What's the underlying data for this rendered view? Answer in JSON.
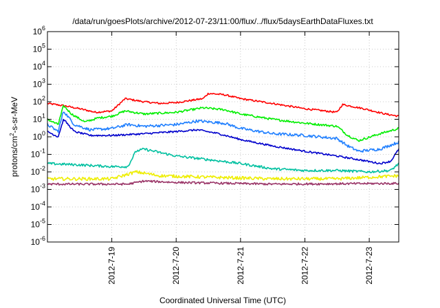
{
  "chart_data": {
    "type": "line",
    "title": "/data/run/goesPlots/archive/2012-07-23/11:00/flux/../flux/5daysEarthDataFluxes.txt",
    "xlabel": "Coordinated Universal Time (UTC)",
    "ylabel": {
      "pre": "protons/cm",
      "sup": "2",
      "post": "-s-sr-MeV"
    },
    "log_y": true,
    "grid": true,
    "xlim": [
      "2012-07-18 00:00",
      "2012-07-23 11:00"
    ],
    "ylim": [
      1e-06,
      1000000.0
    ],
    "x_ticks": [
      {
        "value": "2012-07-19 00:00",
        "label": "2012-7-19"
      },
      {
        "value": "2012-07-20 00:00",
        "label": "2012-7-20"
      },
      {
        "value": "2012-07-21 00:00",
        "label": "2012-7-21"
      },
      {
        "value": "2012-07-22 00:00",
        "label": "2012-7-22"
      },
      {
        "value": "2012-07-23 00:00",
        "label": "2012-7-23"
      }
    ],
    "y_ticks": [
      {
        "exp": -6,
        "label": "10",
        "sup": "-6"
      },
      {
        "exp": -5,
        "label": "10",
        "sup": "-5"
      },
      {
        "exp": -4,
        "label": "10",
        "sup": "-4"
      },
      {
        "exp": -3,
        "label": "10",
        "sup": "-3"
      },
      {
        "exp": -2,
        "label": "10",
        "sup": "-2"
      },
      {
        "exp": -1,
        "label": "10",
        "sup": "-1"
      },
      {
        "exp": 0,
        "label": "10",
        "sup": "0"
      },
      {
        "exp": 1,
        "label": "10",
        "sup": "1"
      },
      {
        "exp": 2,
        "label": "10",
        "sup": "2"
      },
      {
        "exp": 3,
        "label": "10",
        "sup": "3"
      },
      {
        "exp": 4,
        "label": "10",
        "sup": "4"
      },
      {
        "exp": 5,
        "label": "10",
        "sup": "5"
      },
      {
        "exp": 6,
        "label": "10",
        "sup": "6"
      }
    ],
    "series": [
      {
        "color": "#ff0000",
        "noise": 0.05,
        "points": [
          [
            "2012-07-18 00:00",
            80
          ],
          [
            "2012-07-18 06:00",
            60
          ],
          [
            "2012-07-18 12:00",
            40
          ],
          [
            "2012-07-18 18:00",
            25
          ],
          [
            "2012-07-19 00:00",
            30
          ],
          [
            "2012-07-19 05:00",
            150
          ],
          [
            "2012-07-19 12:00",
            100
          ],
          [
            "2012-07-19 18:00",
            80
          ],
          [
            "2012-07-20 00:00",
            90
          ],
          [
            "2012-07-20 10:00",
            150
          ],
          [
            "2012-07-20 12:00",
            300
          ],
          [
            "2012-07-20 18:00",
            250
          ],
          [
            "2012-07-21 00:00",
            150
          ],
          [
            "2012-07-21 12:00",
            80
          ],
          [
            "2012-07-22 00:00",
            40
          ],
          [
            "2012-07-22 12:00",
            25
          ],
          [
            "2012-07-22 14:00",
            70
          ],
          [
            "2012-07-22 22:00",
            40
          ],
          [
            "2012-07-23 06:00",
            20
          ],
          [
            "2012-07-23 11:00",
            15
          ]
        ]
      },
      {
        "color": "#00ee00",
        "noise": 0.06,
        "points": [
          [
            "2012-07-18 00:00",
            10
          ],
          [
            "2012-07-18 04:00",
            5
          ],
          [
            "2012-07-18 06:00",
            60
          ],
          [
            "2012-07-18 09:00",
            20
          ],
          [
            "2012-07-18 14:00",
            7
          ],
          [
            "2012-07-18 19:00",
            12
          ],
          [
            "2012-07-19 00:00",
            15
          ],
          [
            "2012-07-19 05:00",
            30
          ],
          [
            "2012-07-19 12:00",
            20
          ],
          [
            "2012-07-20 00:00",
            25
          ],
          [
            "2012-07-20 10:00",
            45
          ],
          [
            "2012-07-20 18:00",
            35
          ],
          [
            "2012-07-21 00:00",
            20
          ],
          [
            "2012-07-21 12:00",
            10
          ],
          [
            "2012-07-22 00:00",
            6
          ],
          [
            "2012-07-22 12:00",
            4
          ],
          [
            "2012-07-22 16:00",
            1.2
          ],
          [
            "2012-07-22 20:00",
            0.6
          ],
          [
            "2012-07-23 04:00",
            1.5
          ],
          [
            "2012-07-23 11:00",
            3
          ]
        ]
      },
      {
        "color": "#1f7fff",
        "noise": 0.08,
        "points": [
          [
            "2012-07-18 00:00",
            5
          ],
          [
            "2012-07-18 04:00",
            2
          ],
          [
            "2012-07-18 06:00",
            30
          ],
          [
            "2012-07-18 10:00",
            5
          ],
          [
            "2012-07-18 16:00",
            2.5
          ],
          [
            "2012-07-19 00:00",
            3
          ],
          [
            "2012-07-19 06:00",
            5
          ],
          [
            "2012-07-19 12:00",
            4
          ],
          [
            "2012-07-20 00:00",
            5
          ],
          [
            "2012-07-20 08:00",
            8
          ],
          [
            "2012-07-20 18:00",
            6
          ],
          [
            "2012-07-21 00:00",
            3
          ],
          [
            "2012-07-21 12:00",
            1.5
          ],
          [
            "2012-07-22 00:00",
            1.2
          ],
          [
            "2012-07-22 12:00",
            0.8
          ],
          [
            "2012-07-22 16:00",
            0.3
          ],
          [
            "2012-07-22 20:00",
            0.15
          ],
          [
            "2012-07-23 04:00",
            0.2
          ],
          [
            "2012-07-23 11:00",
            0.5
          ]
        ]
      },
      {
        "color": "#0000cc",
        "noise": 0.05,
        "points": [
          [
            "2012-07-18 00:00",
            2
          ],
          [
            "2012-07-18 04:00",
            1
          ],
          [
            "2012-07-18 06:00",
            10
          ],
          [
            "2012-07-18 10:00",
            2
          ],
          [
            "2012-07-18 16:00",
            1.2
          ],
          [
            "2012-07-19 00:00",
            1.2
          ],
          [
            "2012-07-19 12:00",
            1.5
          ],
          [
            "2012-07-20 00:00",
            2
          ],
          [
            "2012-07-20 08:00",
            2.5
          ],
          [
            "2012-07-20 16:00",
            1.5
          ],
          [
            "2012-07-21 00:00",
            0.7
          ],
          [
            "2012-07-21 12:00",
            0.3
          ],
          [
            "2012-07-22 00:00",
            0.15
          ],
          [
            "2012-07-22 12:00",
            0.08
          ],
          [
            "2012-07-22 20:00",
            0.05
          ],
          [
            "2012-07-23 04:00",
            0.03
          ],
          [
            "2012-07-23 08:00",
            0.04
          ],
          [
            "2012-07-23 11:00",
            0.2
          ]
        ]
      },
      {
        "color": "#00c0a0",
        "noise": 0.07,
        "points": [
          [
            "2012-07-18 00:00",
            0.03
          ],
          [
            "2012-07-18 12:00",
            0.025
          ],
          [
            "2012-07-19 00:00",
            0.02
          ],
          [
            "2012-07-19 06:00",
            0.02
          ],
          [
            "2012-07-19 09:00",
            0.15
          ],
          [
            "2012-07-19 12:00",
            0.2
          ],
          [
            "2012-07-20 00:00",
            0.08
          ],
          [
            "2012-07-20 12:00",
            0.05
          ],
          [
            "2012-07-21 00:00",
            0.03
          ],
          [
            "2012-07-21 12:00",
            0.015
          ],
          [
            "2012-07-22 00:00",
            0.012
          ],
          [
            "2012-07-22 12:00",
            0.012
          ],
          [
            "2012-07-23 00:00",
            0.01
          ],
          [
            "2012-07-23 08:00",
            0.012
          ],
          [
            "2012-07-23 11:00",
            0.03
          ]
        ]
      },
      {
        "color": "#eeee00",
        "noise": 0.09,
        "points": [
          [
            "2012-07-18 00:00",
            0.004
          ],
          [
            "2012-07-19 00:00",
            0.004
          ],
          [
            "2012-07-19 09:00",
            0.01
          ],
          [
            "2012-07-19 18:00",
            0.006
          ],
          [
            "2012-07-20 12:00",
            0.005
          ],
          [
            "2012-07-21 12:00",
            0.004
          ],
          [
            "2012-07-22 12:00",
            0.004
          ],
          [
            "2012-07-23 11:00",
            0.006
          ]
        ]
      },
      {
        "color": "#993366",
        "noise": 0.06,
        "points": [
          [
            "2012-07-18 00:00",
            0.002
          ],
          [
            "2012-07-19 06:00",
            0.002
          ],
          [
            "2012-07-19 12:00",
            0.003
          ],
          [
            "2012-07-20 00:00",
            0.0025
          ],
          [
            "2012-07-21 12:00",
            0.002
          ],
          [
            "2012-07-23 11:00",
            0.0022
          ]
        ]
      }
    ]
  }
}
